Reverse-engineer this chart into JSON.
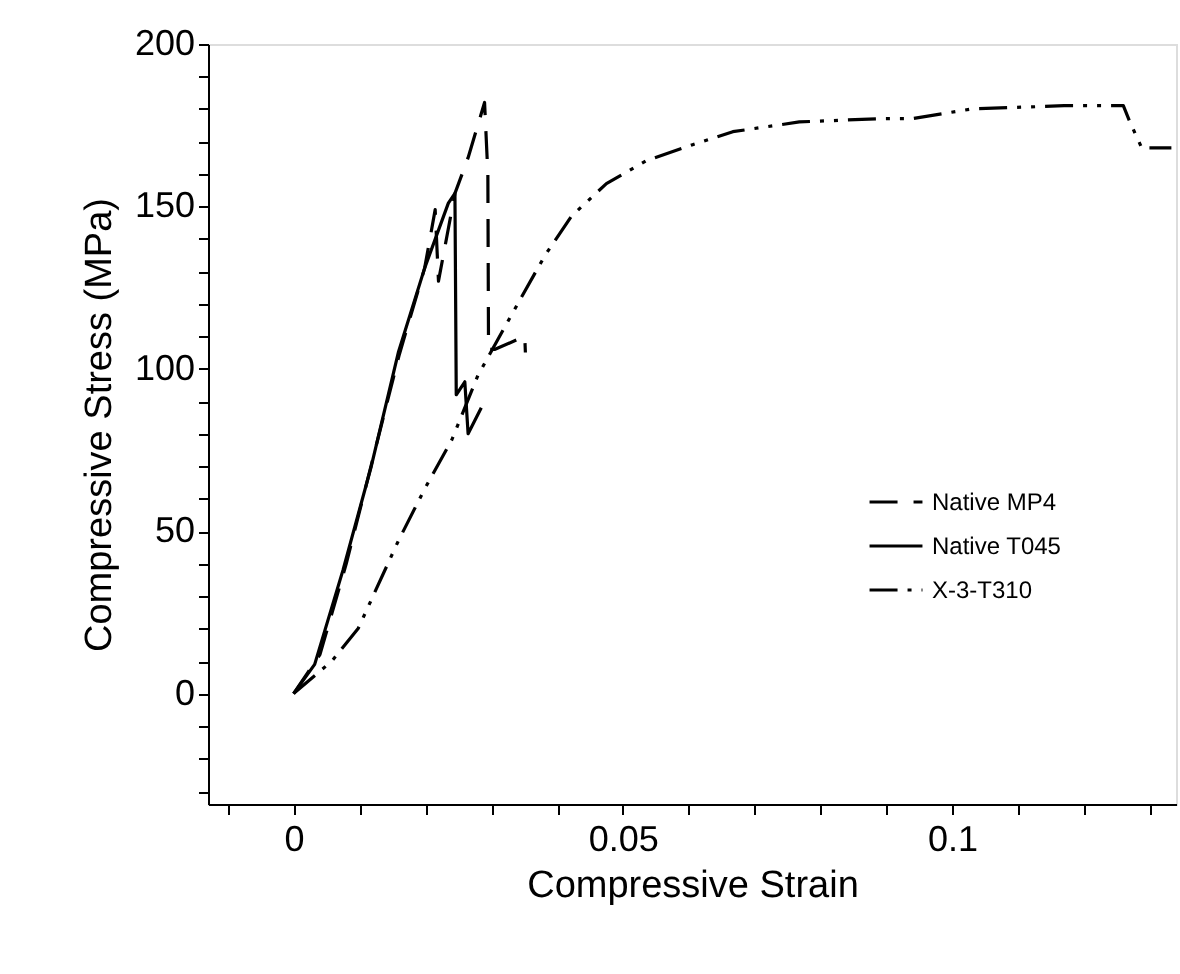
{
  "chart_data": {
    "type": "line",
    "xlabel": "Compressive Strain",
    "ylabel": "Compressive Stress (MPa)",
    "xlim": [
      -0.013,
      0.134
    ],
    "ylim": [
      -34,
      200
    ],
    "xticks": [
      {
        "value": -0.01,
        "label": null
      },
      0,
      {
        "value": 0.01,
        "label": null
      },
      {
        "value": 0.02,
        "label": null
      },
      {
        "value": 0.03,
        "label": null
      },
      {
        "value": 0.04,
        "label": null
      },
      0.05,
      {
        "value": 0.06,
        "label": null
      },
      {
        "value": 0.07,
        "label": null
      },
      {
        "value": 0.08,
        "label": null
      },
      {
        "value": 0.09,
        "label": null
      },
      0.1,
      {
        "value": 0.11,
        "label": null
      },
      {
        "value": 0.12,
        "label": null
      },
      {
        "value": 0.13,
        "label": null
      }
    ],
    "yticks": [
      {
        "value": -30,
        "label": null
      },
      {
        "value": -20,
        "label": null
      },
      {
        "value": -10,
        "label": null
      },
      0,
      {
        "value": 10,
        "label": null
      },
      {
        "value": 20,
        "label": null
      },
      {
        "value": 30,
        "label": null
      },
      {
        "value": 40,
        "label": null
      },
      50,
      {
        "value": 60,
        "label": null
      },
      {
        "value": 70,
        "label": null
      },
      {
        "value": 80,
        "label": null
      },
      {
        "value": 90,
        "label": null
      },
      100,
      {
        "value": 110,
        "label": null
      },
      {
        "value": 120,
        "label": null
      },
      {
        "value": 130,
        "label": null
      },
      {
        "value": 140,
        "label": null
      },
      150,
      {
        "value": 160,
        "label": null
      },
      {
        "value": 170,
        "label": null
      },
      {
        "value": 180,
        "label": null
      },
      {
        "value": 190,
        "label": null
      },
      200
    ],
    "grid": false,
    "legend": "right",
    "marker": "none",
    "series": [
      {
        "name": "Native MP4",
        "color": "#000000",
        "line_style": "dashed",
        "x": [
          0,
          0.004,
          0.008,
          0.012,
          0.016,
          0.0199,
          0.0215,
          0.022,
          0.0245,
          0.0265,
          0.029,
          0.0295,
          0.0296,
          0.0306,
          0.0351,
          0.0352
        ],
        "values": [
          0,
          12,
          40,
          72,
          104,
          131,
          149,
          127,
          154,
          165,
          182,
          160,
          106,
          106,
          110,
          105
        ]
      },
      {
        "name": "Native T045",
        "color": "#000000",
        "line_style": "solid",
        "x": [
          0,
          0.0032,
          0.0075,
          0.0118,
          0.0159,
          0.0199,
          0.0235,
          0.0245,
          0.0247,
          0.026,
          0.0265,
          0.0285
        ],
        "values": [
          0,
          9,
          38,
          70,
          105,
          131,
          151,
          154,
          92,
          96,
          80,
          88
        ]
      },
      {
        "name": "X-3-T310",
        "color": "#000000",
        "line_style": "dashdot",
        "x": [
          0,
          0.0058,
          0.0098,
          0.0159,
          0.0199,
          0.024,
          0.028,
          0.0321,
          0.0382,
          0.0422,
          0.0475,
          0.0535,
          0.0606,
          0.0667,
          0.0768,
          0.0889,
          0.0939,
          0.103,
          0.117,
          0.126,
          0.127,
          0.1288,
          0.1333
        ],
        "values": [
          0,
          10,
          20,
          47,
          63,
          78,
          98,
          113,
          135,
          147,
          157,
          164,
          169,
          173,
          176,
          177,
          177,
          180,
          181,
          181,
          176,
          168,
          168
        ]
      }
    ]
  }
}
